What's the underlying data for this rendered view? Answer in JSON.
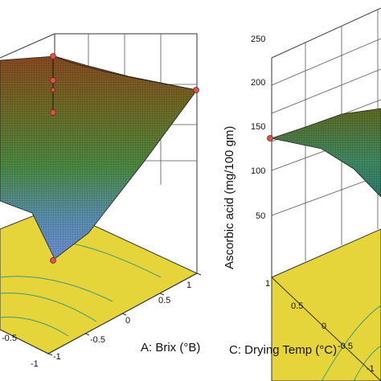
{
  "chart_data": [
    {
      "type": "surface3d",
      "title": "",
      "xlabel": "A: Brix (°B)",
      "x_ticks": [
        "-1",
        "-0.5",
        "0",
        "0.5",
        "1"
      ],
      "y_ticks": [
        "-1",
        "-0.5"
      ],
      "surface_colors": [
        "#5b7fc4",
        "#3f8a64",
        "#5f7a2a",
        "#7a5a25"
      ],
      "floor_color": "#e6d53a",
      "marker_color": "#d9534f",
      "design_points": [
        {
          "label": "corner-high"
        },
        {
          "label": "center-top"
        },
        {
          "label": "center-mid"
        },
        {
          "label": "center-low"
        },
        {
          "label": "right-corner"
        },
        {
          "label": "bottom"
        }
      ]
    },
    {
      "type": "surface3d",
      "title": "",
      "zlabel": "Ascorbic acid (mg/100 gm)",
      "z_ticks": [
        "50",
        "100",
        "150",
        "200",
        "250"
      ],
      "zlim": [
        50,
        250
      ],
      "xlabel": "C: Drying Temp (°C)",
      "x_ticks": [
        "1",
        "0.5",
        "0",
        "-0.5",
        "-1"
      ],
      "surface_colors": [
        "#3f8a64",
        "#5f7a2a"
      ],
      "floor_color": "#e6d53a",
      "marker_color": "#d9534f",
      "design_points": [
        {
          "label": "left-edge",
          "z": 140
        }
      ]
    }
  ]
}
